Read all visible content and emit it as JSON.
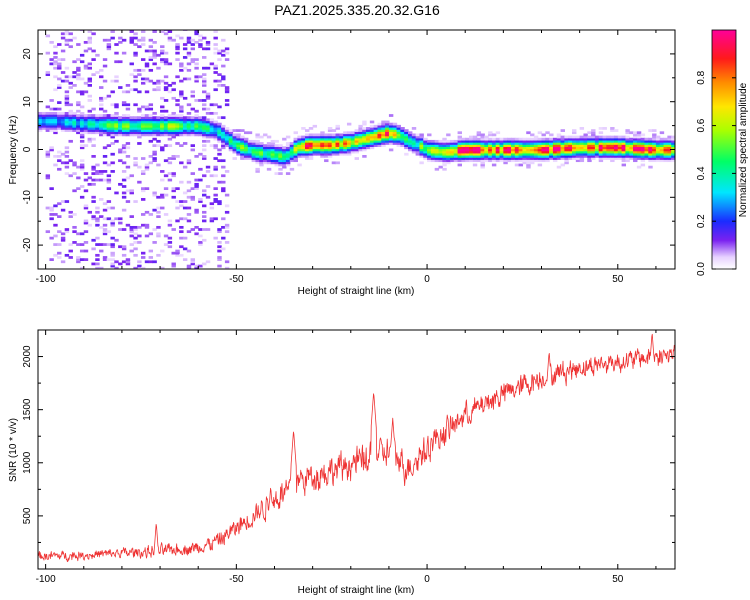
{
  "title": "PAZ1.2025.335.20.32.G16",
  "chart_data": [
    {
      "type": "heatmap",
      "title": "PAZ1.2025.335.20.32.G16",
      "xlabel": "Height of straight line (km)",
      "ylabel": "Frequency (Hz)",
      "xlim": [
        -102,
        65
      ],
      "ylim": [
        -25,
        25
      ],
      "xticks": [
        -100,
        -50,
        0,
        50
      ],
      "yticks": [
        -20,
        -10,
        0,
        10,
        20
      ],
      "xtick_labels": [
        "-100",
        "-50",
        "0",
        "50"
      ],
      "ytick_labels": [
        "-20",
        "-10",
        "0",
        "10",
        "20"
      ],
      "ridge": {
        "x_km": [
          -97,
          -90,
          -80,
          -70,
          -60,
          -55,
          -50,
          -45,
          -40,
          -37,
          -34,
          -30,
          -25,
          -20,
          -15,
          -10,
          -7,
          -4,
          -2,
          0,
          5,
          10,
          20,
          30,
          40,
          50,
          60,
          65
        ],
        "freq_hz": [
          6,
          5.5,
          5,
          5,
          5,
          4,
          1,
          -0.5,
          -1,
          -1.5,
          0.5,
          1,
          1,
          1.5,
          2.5,
          3.5,
          3,
          1.5,
          1,
          0,
          -0.5,
          0,
          0,
          0,
          0.5,
          0.5,
          0,
          0
        ],
        "amplitude": [
          0.3,
          0.35,
          0.5,
          0.55,
          0.45,
          0.35,
          0.5,
          0.45,
          0.5,
          0.4,
          0.6,
          0.9,
          0.8,
          0.7,
          0.85,
          0.9,
          0.5,
          0.3,
          0.45,
          0.6,
          0.75,
          0.9,
          0.85,
          0.95,
          0.8,
          0.9,
          0.85,
          0.8
        ]
      },
      "noise_region_km": [
        -100,
        -52
      ],
      "colorbar": {
        "label": "Normalized spectral amplitude",
        "range": [
          0.0,
          1.0
        ],
        "ticks": [
          0.0,
          0.2,
          0.4,
          0.6,
          0.8
        ],
        "tick_labels": [
          "0.0",
          "0.2",
          "0.4",
          "0.6",
          "0.8"
        ]
      }
    },
    {
      "type": "line",
      "xlabel": "Height of straight line (km)",
      "ylabel": "SNR (10 * v/v)",
      "xlim": [
        -102,
        65
      ],
      "ylim": [
        0,
        2250
      ],
      "xticks": [
        -100,
        -50,
        0,
        50
      ],
      "yticks": [
        500,
        1000,
        1500,
        2000
      ],
      "xtick_labels": [
        "-100",
        "-50",
        "0",
        "50"
      ],
      "ytick_labels": [
        "500",
        "1000",
        "1500",
        "2000"
      ],
      "series_color": "#ee3333",
      "trend": {
        "x_km": [
          -102,
          -90,
          -80,
          -70,
          -60,
          -55,
          -50,
          -45,
          -40,
          -35,
          -30,
          -25,
          -20,
          -15,
          -10,
          -5,
          0,
          5,
          10,
          20,
          30,
          40,
          50,
          60,
          65
        ],
        "snr": [
          120,
          130,
          150,
          170,
          200,
          260,
          380,
          520,
          650,
          800,
          880,
          920,
          980,
          1050,
          1100,
          950,
          1150,
          1300,
          1450,
          1650,
          1800,
          1900,
          1950,
          2000,
          2020
        ]
      },
      "noise_amplitude": [
        60,
        60,
        70,
        80,
        90,
        110,
        130,
        150,
        170,
        180,
        190,
        190,
        200,
        200,
        200,
        200,
        190,
        180,
        170,
        160,
        150,
        140,
        130,
        130,
        130
      ],
      "spikes": [
        {
          "x": -71,
          "y": 440
        },
        {
          "x": -41,
          "y": 780
        },
        {
          "x": -35,
          "y": 1310
        },
        {
          "x": -14,
          "y": 1670
        },
        {
          "x": -9,
          "y": 1420
        },
        {
          "x": 32,
          "y": 2050
        },
        {
          "x": 59,
          "y": 2230
        }
      ]
    }
  ]
}
